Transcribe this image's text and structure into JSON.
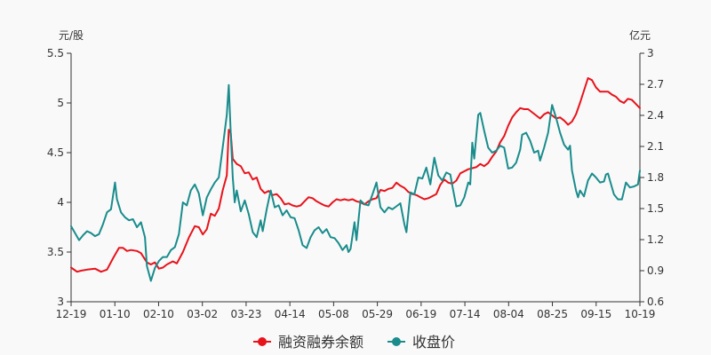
{
  "chart_data": {
    "type": "line",
    "x_ticks": [
      "12-19",
      "01-10",
      "02-10",
      "03-02",
      "03-23",
      "04-14",
      "05-08",
      "05-29",
      "06-19",
      "07-14",
      "08-04",
      "08-25",
      "09-15",
      "10-19"
    ],
    "y_left": {
      "label": "元/股",
      "ticks": [
        "3",
        "3.5",
        "4",
        "4.5",
        "5",
        "5.5"
      ],
      "range": [
        3,
        5.5
      ]
    },
    "y_right": {
      "label": "亿元",
      "ticks": [
        "0.6",
        "0.9",
        "1.2",
        "1.5",
        "1.8",
        "2.1",
        "2.4",
        "2.7",
        "3"
      ],
      "range": [
        0.6,
        3.0
      ]
    },
    "grid": false,
    "legend_position": "bottom-center",
    "series": [
      {
        "name": "融资融券余额",
        "axis": "right",
        "color": "#e8121b",
        "points": [
          [
            0,
            0.93
          ],
          [
            3,
            0.89
          ],
          [
            5,
            0.9
          ],
          [
            8,
            0.91
          ],
          [
            12,
            0.92
          ],
          [
            15,
            0.89
          ],
          [
            18,
            0.91
          ],
          [
            21,
            1.02
          ],
          [
            24,
            1.12
          ],
          [
            26,
            1.12
          ],
          [
            28,
            1.09
          ],
          [
            30,
            1.1
          ],
          [
            33,
            1.09
          ],
          [
            35,
            1.07
          ],
          [
            38,
            0.98
          ],
          [
            40,
            0.96
          ],
          [
            42,
            0.98
          ],
          [
            44,
            0.92
          ],
          [
            46,
            0.93
          ],
          [
            48,
            0.96
          ],
          [
            51,
            0.99
          ],
          [
            53,
            0.97
          ],
          [
            56,
            1.08
          ],
          [
            59,
            1.22
          ],
          [
            62,
            1.33
          ],
          [
            64,
            1.32
          ],
          [
            66,
            1.25
          ],
          [
            68,
            1.3
          ],
          [
            70,
            1.45
          ],
          [
            72,
            1.43
          ],
          [
            74,
            1.5
          ],
          [
            76,
            1.68
          ],
          [
            78,
            1.82
          ],
          [
            79,
            2.26
          ],
          [
            80,
            2.23
          ],
          [
            81,
            1.98
          ],
          [
            83,
            1.93
          ],
          [
            85,
            1.91
          ],
          [
            87,
            1.84
          ],
          [
            89,
            1.85
          ],
          [
            91,
            1.78
          ],
          [
            93,
            1.8
          ],
          [
            95,
            1.69
          ],
          [
            97,
            1.65
          ],
          [
            99,
            1.67
          ],
          [
            101,
            1.63
          ],
          [
            103,
            1.64
          ],
          [
            105,
            1.6
          ],
          [
            107,
            1.54
          ],
          [
            109,
            1.55
          ],
          [
            111,
            1.53
          ],
          [
            113,
            1.52
          ],
          [
            115,
            1.53
          ],
          [
            117,
            1.57
          ],
          [
            119,
            1.61
          ],
          [
            121,
            1.6
          ],
          [
            123,
            1.57
          ],
          [
            125,
            1.55
          ],
          [
            127,
            1.53
          ],
          [
            129,
            1.52
          ],
          [
            131,
            1.56
          ],
          [
            133,
            1.59
          ],
          [
            135,
            1.58
          ],
          [
            137,
            1.59
          ],
          [
            139,
            1.58
          ],
          [
            141,
            1.59
          ],
          [
            143,
            1.57
          ],
          [
            145,
            1.56
          ],
          [
            147,
            1.54
          ],
          [
            149,
            1.57
          ],
          [
            151,
            1.59
          ],
          [
            153,
            1.6
          ],
          [
            155,
            1.68
          ],
          [
            157,
            1.67
          ],
          [
            159,
            1.69
          ],
          [
            161,
            1.7
          ],
          [
            163,
            1.75
          ],
          [
            165,
            1.72
          ],
          [
            167,
            1.7
          ],
          [
            169,
            1.66
          ],
          [
            171,
            1.64
          ],
          [
            173,
            1.63
          ],
          [
            175,
            1.61
          ],
          [
            177,
            1.59
          ],
          [
            179,
            1.6
          ],
          [
            181,
            1.62
          ],
          [
            183,
            1.64
          ],
          [
            185,
            1.73
          ],
          [
            187,
            1.78
          ],
          [
            189,
            1.75
          ],
          [
            191,
            1.74
          ],
          [
            193,
            1.77
          ],
          [
            195,
            1.84
          ],
          [
            197,
            1.86
          ],
          [
            199,
            1.88
          ],
          [
            201,
            1.89
          ],
          [
            203,
            1.9
          ],
          [
            205,
            1.93
          ],
          [
            207,
            1.91
          ],
          [
            209,
            1.94
          ],
          [
            211,
            2.0
          ],
          [
            213,
            2.05
          ],
          [
            215,
            2.14
          ],
          [
            217,
            2.2
          ],
          [
            219,
            2.3
          ],
          [
            221,
            2.38
          ],
          [
            223,
            2.43
          ],
          [
            225,
            2.47
          ],
          [
            227,
            2.46
          ],
          [
            229,
            2.46
          ],
          [
            231,
            2.43
          ],
          [
            233,
            2.4
          ],
          [
            235,
            2.37
          ],
          [
            237,
            2.41
          ],
          [
            239,
            2.43
          ],
          [
            241,
            2.4
          ],
          [
            243,
            2.37
          ],
          [
            245,
            2.38
          ],
          [
            247,
            2.35
          ],
          [
            249,
            2.31
          ],
          [
            251,
            2.34
          ],
          [
            253,
            2.41
          ],
          [
            255,
            2.52
          ],
          [
            257,
            2.64
          ],
          [
            259,
            2.76
          ],
          [
            261,
            2.74
          ],
          [
            263,
            2.67
          ],
          [
            265,
            2.63
          ],
          [
            267,
            2.63
          ],
          [
            269,
            2.63
          ],
          [
            271,
            2.6
          ],
          [
            273,
            2.58
          ],
          [
            275,
            2.54
          ],
          [
            277,
            2.52
          ],
          [
            279,
            2.56
          ],
          [
            281,
            2.55
          ],
          [
            283,
            2.51
          ],
          [
            285,
            2.47
          ]
        ]
      },
      {
        "name": "收盘价",
        "axis": "left",
        "color": "#1a8c8c",
        "points": [
          [
            0,
            3.76
          ],
          [
            2,
            3.69
          ],
          [
            4,
            3.62
          ],
          [
            6,
            3.67
          ],
          [
            8,
            3.71
          ],
          [
            10,
            3.69
          ],
          [
            12,
            3.66
          ],
          [
            14,
            3.68
          ],
          [
            16,
            3.78
          ],
          [
            18,
            3.9
          ],
          [
            20,
            3.93
          ],
          [
            22,
            4.2
          ],
          [
            23,
            4.03
          ],
          [
            25,
            3.9
          ],
          [
            27,
            3.85
          ],
          [
            29,
            3.82
          ],
          [
            31,
            3.83
          ],
          [
            33,
            3.75
          ],
          [
            35,
            3.8
          ],
          [
            37,
            3.65
          ],
          [
            38,
            3.36
          ],
          [
            40,
            3.21
          ],
          [
            42,
            3.34
          ],
          [
            44,
            3.41
          ],
          [
            46,
            3.45
          ],
          [
            48,
            3.45
          ],
          [
            50,
            3.52
          ],
          [
            52,
            3.55
          ],
          [
            54,
            3.68
          ],
          [
            56,
            4.0
          ],
          [
            58,
            3.97
          ],
          [
            60,
            4.12
          ],
          [
            62,
            4.18
          ],
          [
            64,
            4.09
          ],
          [
            66,
            3.87
          ],
          [
            68,
            4.05
          ],
          [
            70,
            4.13
          ],
          [
            72,
            4.2
          ],
          [
            74,
            4.25
          ],
          [
            76,
            4.56
          ],
          [
            78,
            4.88
          ],
          [
            79,
            5.18
          ],
          [
            80,
            4.7
          ],
          [
            81,
            4.25
          ],
          [
            82,
            4.0
          ],
          [
            83,
            4.12
          ],
          [
            85,
            3.91
          ],
          [
            87,
            4.02
          ],
          [
            89,
            3.88
          ],
          [
            91,
            3.7
          ],
          [
            93,
            3.65
          ],
          [
            95,
            3.82
          ],
          [
            96,
            3.71
          ],
          [
            98,
            3.93
          ],
          [
            100,
            4.12
          ],
          [
            102,
            3.95
          ],
          [
            104,
            3.97
          ],
          [
            106,
            3.87
          ],
          [
            108,
            3.92
          ],
          [
            110,
            3.85
          ],
          [
            112,
            3.84
          ],
          [
            114,
            3.72
          ],
          [
            116,
            3.57
          ],
          [
            118,
            3.54
          ],
          [
            120,
            3.65
          ],
          [
            122,
            3.72
          ],
          [
            124,
            3.75
          ],
          [
            126,
            3.69
          ],
          [
            128,
            3.73
          ],
          [
            130,
            3.65
          ],
          [
            132,
            3.64
          ],
          [
            134,
            3.59
          ],
          [
            136,
            3.52
          ],
          [
            138,
            3.57
          ],
          [
            139,
            3.5
          ],
          [
            140,
            3.53
          ],
          [
            142,
            3.8
          ],
          [
            143,
            3.62
          ],
          [
            145,
            4.02
          ],
          [
            147,
            3.98
          ],
          [
            149,
            3.97
          ],
          [
            151,
            4.08
          ],
          [
            153,
            4.2
          ],
          [
            155,
            3.95
          ],
          [
            157,
            3.9
          ],
          [
            159,
            3.95
          ],
          [
            161,
            3.93
          ],
          [
            163,
            3.96
          ],
          [
            165,
            3.99
          ],
          [
            167,
            3.78
          ],
          [
            168,
            3.7
          ],
          [
            170,
            4.1
          ],
          [
            172,
            4.08
          ],
          [
            174,
            4.25
          ],
          [
            176,
            4.24
          ],
          [
            178,
            4.35
          ],
          [
            180,
            4.18
          ],
          [
            182,
            4.45
          ],
          [
            184,
            4.27
          ],
          [
            186,
            4.22
          ],
          [
            188,
            4.3
          ],
          [
            190,
            4.28
          ],
          [
            191,
            4.17
          ],
          [
            193,
            3.96
          ],
          [
            195,
            3.97
          ],
          [
            197,
            4.05
          ],
          [
            199,
            4.2
          ],
          [
            200,
            4.18
          ],
          [
            201,
            4.6
          ],
          [
            202,
            4.44
          ],
          [
            204,
            4.88
          ],
          [
            205,
            4.9
          ],
          [
            207,
            4.72
          ],
          [
            209,
            4.55
          ],
          [
            211,
            4.5
          ],
          [
            213,
            4.52
          ],
          [
            215,
            4.57
          ],
          [
            217,
            4.55
          ],
          [
            219,
            4.34
          ],
          [
            221,
            4.35
          ],
          [
            223,
            4.4
          ],
          [
            225,
            4.53
          ],
          [
            226,
            4.68
          ],
          [
            228,
            4.7
          ],
          [
            230,
            4.62
          ],
          [
            232,
            4.5
          ],
          [
            234,
            4.52
          ],
          [
            235,
            4.42
          ],
          [
            237,
            4.55
          ],
          [
            239,
            4.7
          ],
          [
            241,
            4.98
          ],
          [
            243,
            4.85
          ],
          [
            245,
            4.7
          ],
          [
            247,
            4.58
          ],
          [
            249,
            4.53
          ],
          [
            250,
            4.57
          ],
          [
            251,
            4.32
          ],
          [
            253,
            4.12
          ],
          [
            254,
            4.05
          ],
          [
            255,
            4.12
          ],
          [
            257,
            4.06
          ],
          [
            259,
            4.22
          ],
          [
            261,
            4.29
          ],
          [
            263,
            4.25
          ],
          [
            265,
            4.2
          ],
          [
            267,
            4.21
          ],
          [
            268,
            4.28
          ],
          [
            269,
            4.29
          ],
          [
            270,
            4.22
          ],
          [
            272,
            4.08
          ],
          [
            274,
            4.03
          ],
          [
            276,
            4.03
          ],
          [
            278,
            4.2
          ],
          [
            280,
            4.15
          ],
          [
            282,
            4.16
          ],
          [
            284,
            4.18
          ],
          [
            285,
            4.32
          ]
        ]
      }
    ]
  }
}
